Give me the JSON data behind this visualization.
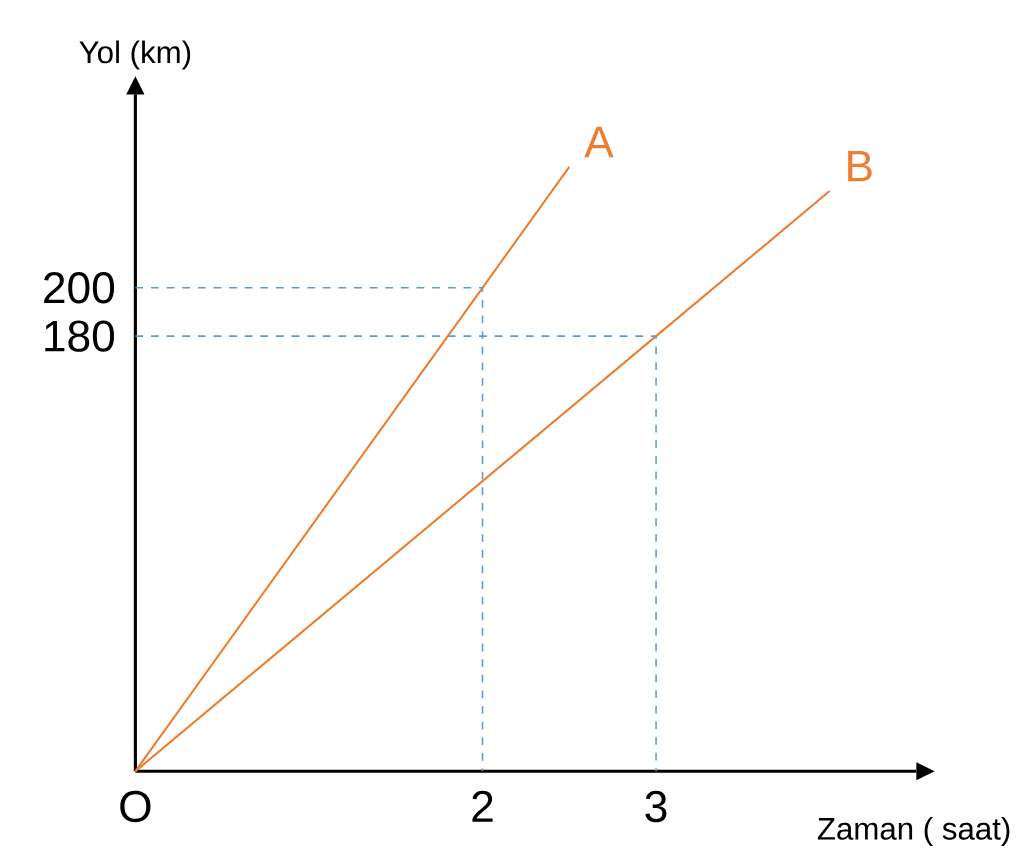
{
  "chart_data": {
    "type": "line",
    "xlabel": "Zaman ( saat)",
    "ylabel": "Yol (km)",
    "xlim": [
      0,
      4.5
    ],
    "ylim": [
      0,
      280
    ],
    "xticks": [
      {
        "value": 0,
        "label": "O"
      },
      2,
      3
    ],
    "yticks": [
      180,
      200
    ],
    "series": [
      {
        "name": "A",
        "color": "#ed7d31",
        "x": [
          0,
          2,
          2.5
        ],
        "values": [
          0,
          200,
          250
        ]
      },
      {
        "name": "B",
        "color": "#ed7d31",
        "x": [
          0,
          3,
          4
        ],
        "values": [
          0,
          180,
          240
        ]
      },
      {
        "color": "#5b9bd5",
        "line_style": "dashed",
        "x": [
          0,
          2,
          2
        ],
        "values": [
          200,
          200,
          0
        ]
      },
      {
        "color": "#5b9bd5",
        "line_style": "dashed",
        "x": [
          0,
          3,
          3
        ],
        "values": [
          180,
          180,
          0
        ]
      }
    ]
  }
}
